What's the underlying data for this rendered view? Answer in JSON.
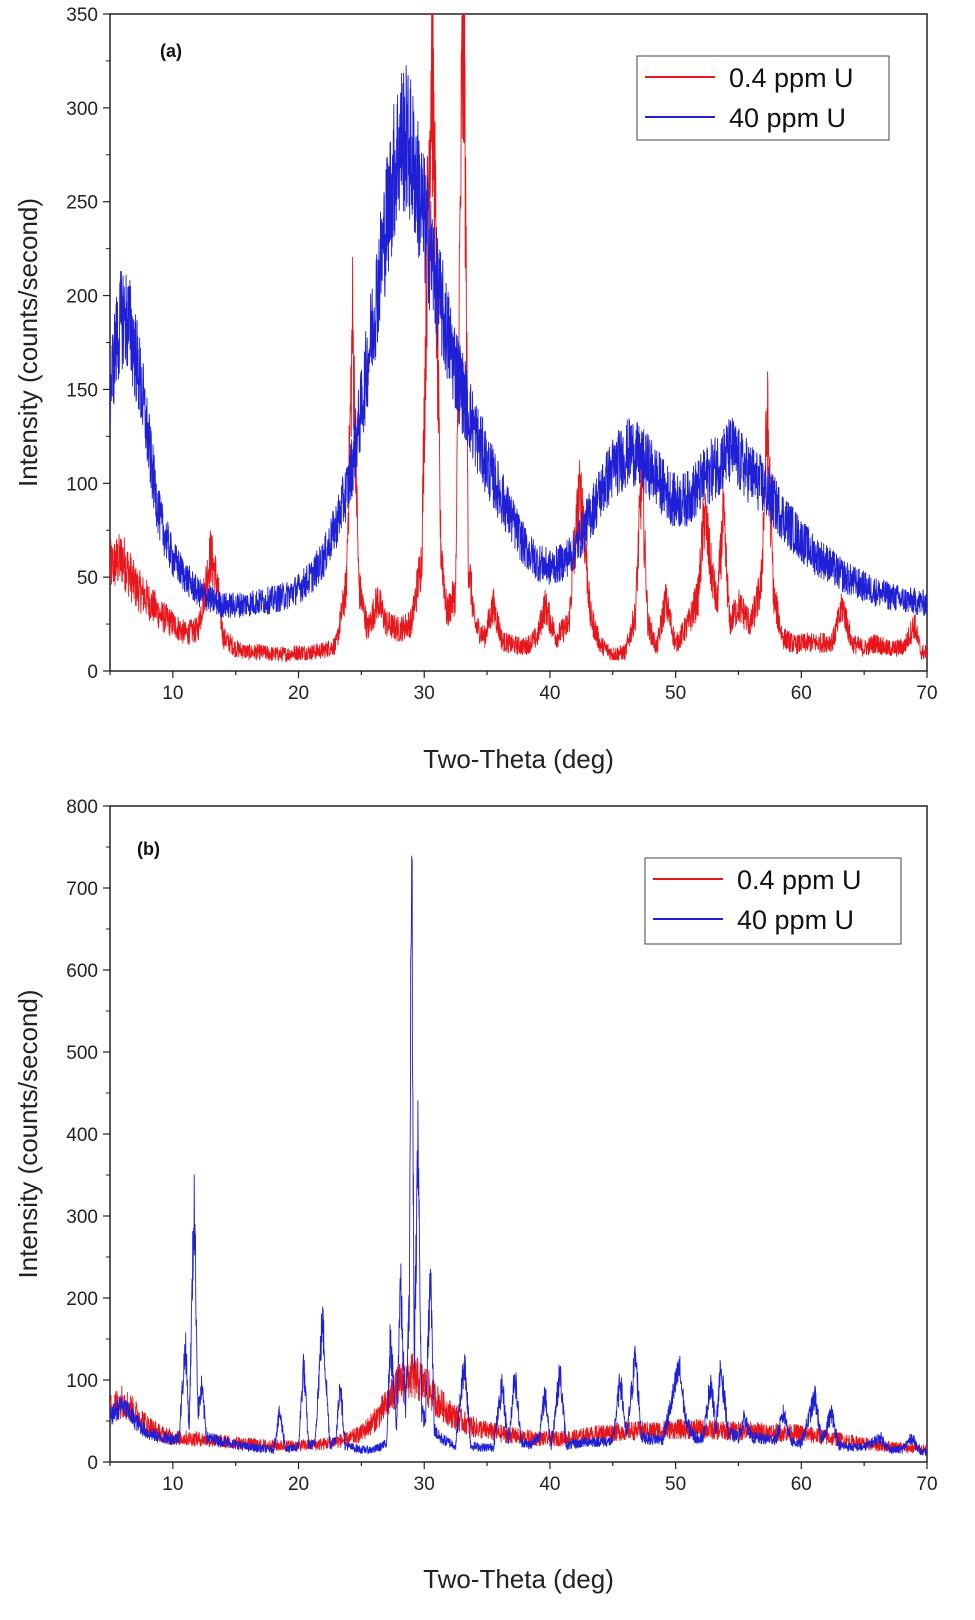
{
  "figure": {
    "colors": {
      "red": "#e8161b",
      "blue": "#1f1fd6",
      "axis": "#222222"
    }
  },
  "chart_data": [
    {
      "type": "line",
      "panel_label": "(a)",
      "title": "",
      "xlabel": "Two-Theta (deg)",
      "ylabel": "Intensity (counts/second)",
      "xlim": [
        5,
        70
      ],
      "ylim": [
        0,
        350
      ],
      "xticks": [
        10,
        20,
        30,
        40,
        50,
        60,
        70
      ],
      "yticks": [
        0,
        50,
        100,
        150,
        200,
        250,
        300,
        350
      ],
      "legend_position": "top-right",
      "series": [
        {
          "name": "0.4 ppm U",
          "color": "#e8161b",
          "x": [
            5,
            6,
            7,
            8,
            9,
            10,
            11,
            12,
            13,
            13.5,
            14,
            15,
            16,
            17,
            18,
            19,
            20,
            21,
            22,
            23,
            23.8,
            24.3,
            24.8,
            25.5,
            26.3,
            27,
            28,
            29,
            29.8,
            30.3,
            30.6,
            30.9,
            31.3,
            31.8,
            32.5,
            33.0,
            33.2,
            33.5,
            34,
            34.8,
            35.5,
            36.2,
            37,
            38,
            39,
            39.6,
            40.5,
            41.5,
            42.3,
            42.6,
            43.2,
            44,
            45,
            46,
            46.8,
            47.3,
            47.8,
            48.5,
            49.2,
            50,
            51,
            51.8,
            52.3,
            52.8,
            53.3,
            53.8,
            54.3,
            55,
            56,
            56.8,
            57.3,
            57.8,
            58.5,
            59.5,
            60.5,
            61.5,
            62.5,
            63.3,
            64,
            65,
            65.9,
            66.8,
            67.5,
            68.2,
            69,
            69.5,
            70
          ],
          "y": [
            55,
            60,
            45,
            38,
            30,
            25,
            20,
            22,
            62,
            48,
            18,
            12,
            10,
            10,
            9,
            9,
            10,
            10,
            11,
            14,
            45,
            185,
            45,
            22,
            38,
            25,
            22,
            26,
            60,
            250,
            340,
            230,
            70,
            30,
            42,
            310,
            328,
            60,
            25,
            18,
            35,
            16,
            14,
            13,
            18,
            35,
            18,
            25,
            92,
            88,
            30,
            14,
            9,
            10,
            30,
            105,
            25,
            12,
            38,
            14,
            25,
            40,
            85,
            55,
            35,
            82,
            25,
            35,
            25,
            45,
            135,
            40,
            18,
            14,
            15,
            15,
            16,
            35,
            15,
            12,
            15,
            12,
            12,
            13,
            25,
            10,
            10
          ]
        },
        {
          "name": "40 ppm U",
          "color": "#1f1fd6",
          "x": [
            5,
            5.5,
            6,
            6.5,
            7,
            7.5,
            8,
            8.5,
            9,
            10,
            11,
            12,
            13,
            14,
            15,
            16,
            17,
            18,
            19,
            20,
            21,
            22,
            23,
            24,
            25,
            26,
            27,
            27.8,
            28.3,
            28.8,
            29.3,
            30,
            31,
            32,
            33,
            34,
            35,
            36,
            37,
            38,
            39,
            40,
            41,
            42,
            43,
            44,
            45,
            46,
            46.5,
            47,
            48,
            49,
            50,
            51,
            52,
            53,
            54,
            54.5,
            55,
            56,
            57,
            58,
            59,
            60,
            61,
            62,
            63,
            64,
            65,
            66,
            67,
            68,
            69,
            70
          ],
          "y": [
            150,
            175,
            190,
            185,
            170,
            150,
            125,
            100,
            80,
            60,
            50,
            42,
            38,
            35,
            35,
            36,
            37,
            38,
            40,
            44,
            50,
            60,
            78,
            100,
            140,
            190,
            240,
            275,
            285,
            280,
            265,
            240,
            205,
            175,
            150,
            128,
            110,
            95,
            80,
            66,
            58,
            55,
            58,
            65,
            80,
            95,
            108,
            115,
            118,
            114,
            108,
            98,
            90,
            92,
            100,
            108,
            115,
            118,
            112,
            105,
            98,
            88,
            78,
            70,
            62,
            58,
            52,
            48,
            45,
            42,
            40,
            38,
            37,
            36
          ]
        }
      ]
    },
    {
      "type": "line",
      "panel_label": "(b)",
      "title": "",
      "xlabel": "Two-Theta (deg)",
      "ylabel": "Intensity (counts/second)",
      "xlim": [
        5,
        70
      ],
      "ylim": [
        0,
        800
      ],
      "xticks": [
        10,
        20,
        30,
        40,
        50,
        60,
        70
      ],
      "yticks": [
        0,
        100,
        200,
        300,
        400,
        500,
        600,
        700,
        800
      ],
      "legend_position": "top-right",
      "series": [
        {
          "name": "0.4 ppm U",
          "color": "#e8161b",
          "x": [
            5,
            6,
            7,
            8,
            9,
            10,
            12,
            14,
            16,
            18,
            20,
            22,
            24,
            25,
            26,
            27,
            28,
            29,
            30,
            31,
            32,
            33,
            34,
            36,
            38,
            40,
            42,
            44,
            46,
            48,
            50,
            52,
            54,
            56,
            58,
            60,
            62,
            64,
            66,
            68,
            70
          ],
          "y": [
            65,
            75,
            60,
            45,
            35,
            30,
            28,
            25,
            22,
            20,
            20,
            22,
            28,
            35,
            50,
            70,
            95,
            105,
            95,
            75,
            60,
            50,
            42,
            35,
            30,
            28,
            30,
            35,
            38,
            38,
            40,
            40,
            38,
            38,
            36,
            35,
            30,
            25,
            20,
            18,
            15
          ]
        },
        {
          "name": "40 ppm U",
          "color": "#1f1fd6",
          "x": [
            5,
            6,
            7,
            8,
            9,
            10,
            10.5,
            11.0,
            11.3,
            11.7,
            12.0,
            12.3,
            12.7,
            14,
            16,
            18,
            18.5,
            19,
            20,
            20.4,
            20.8,
            21.3,
            21.9,
            22.5,
            23,
            23.3,
            23.7,
            25,
            26,
            27,
            27.3,
            27.8,
            28.1,
            28.5,
            28.8,
            29.0,
            29.2,
            29.5,
            29.8,
            30.1,
            30.5,
            30.8,
            31.2,
            31.8,
            32.5,
            33.2,
            33.7,
            34.5,
            35.5,
            36.2,
            36.7,
            37.2,
            37.7,
            38.5,
            39.2,
            39.6,
            40.1,
            40.8,
            41.3,
            42,
            43,
            44,
            45,
            45.6,
            46.1,
            46.8,
            47.3,
            48,
            49,
            50.3,
            50.8,
            51.5,
            52.2,
            52.8,
            53.2,
            53.6,
            54.2,
            55,
            55.5,
            56,
            57,
            58,
            58.6,
            59.2,
            60,
            61.1,
            61.6,
            62.4,
            63,
            64,
            65,
            66.3,
            67,
            68,
            68.8,
            69.5,
            70
          ],
          "y": [
            55,
            70,
            50,
            35,
            30,
            28,
            30,
            145,
            40,
            325,
            60,
            90,
            30,
            25,
            18,
            15,
            60,
            15,
            18,
            120,
            20,
            22,
            175,
            20,
            30,
            100,
            20,
            15,
            15,
            22,
            150,
            40,
            220,
            60,
            180,
            760,
            120,
            395,
            60,
            50,
            230,
            40,
            30,
            25,
            20,
            125,
            20,
            18,
            18,
            95,
            20,
            110,
            25,
            20,
            35,
            85,
            20,
            110,
            20,
            22,
            25,
            25,
            25,
            100,
            30,
            130,
            30,
            28,
            28,
            115,
            50,
            30,
            30,
            100,
            40,
            115,
            35,
            30,
            55,
            30,
            28,
            28,
            60,
            25,
            22,
            80,
            25,
            60,
            20,
            18,
            18,
            30,
            15,
            15,
            30,
            12,
            12
          ]
        }
      ]
    }
  ]
}
